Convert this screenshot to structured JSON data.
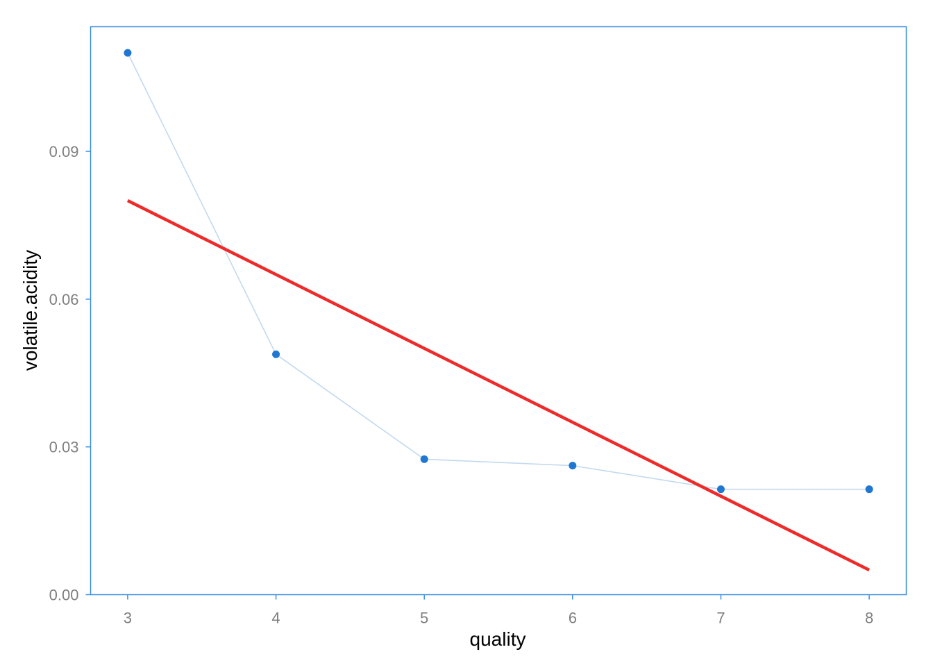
{
  "chart_data": {
    "type": "line",
    "xlabel": "quality",
    "ylabel": "volatile.acidity",
    "x": [
      3,
      4,
      5,
      6,
      7,
      8
    ],
    "xticks": [
      "3",
      "4",
      "5",
      "6",
      "7",
      "8"
    ],
    "xlim": [
      2.75,
      8.25
    ],
    "yticks": [
      "0.00",
      "0.03",
      "0.06",
      "0.09"
    ],
    "ylim": [
      0,
      0.1153
    ],
    "series": [
      {
        "kind": "line+points",
        "values": [
          0.11,
          0.0488,
          0.0275,
          0.0262,
          0.0214,
          0.0214
        ],
        "point_color": "#1f77d2",
        "line_color": "#c3d9ee"
      },
      {
        "kind": "regression-line",
        "x": [
          3,
          8
        ],
        "values": [
          0.08,
          0.005
        ],
        "line_color": "#ee2a2a"
      }
    ],
    "grid": false,
    "legend": "none",
    "frame_color": "#3a8ee0",
    "axis_tick_color": "#3a8ee0"
  }
}
